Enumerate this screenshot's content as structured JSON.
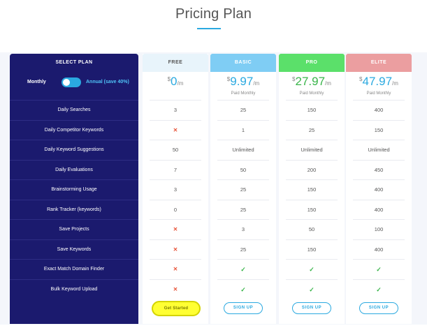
{
  "page": {
    "title": "Pricing Plan",
    "accent": "#2aa9e0"
  },
  "left": {
    "header": "SELECT PLAN",
    "toggle": {
      "monthly_label": "Monthly",
      "annual_label": "Annual (save 40%)",
      "on": true
    }
  },
  "features": [
    "Daily Searches",
    "Daily Competitor Keywords",
    "Daily Keyword Suggestions",
    "Daily Evaluations",
    "Brainstorming Usage",
    "Rank Tracker (keywords)",
    "Save Projects",
    "Save Keywords",
    "Exact Match Domain Finder",
    "Bulk Keyword Upload"
  ],
  "plans": [
    {
      "name": "FREE",
      "color": "#e8f4fb",
      "text_color": "#555555",
      "currency": "$",
      "amount": "0",
      "period": "/m",
      "price_color": "#2aa9e0",
      "billing_note": "",
      "values": [
        "3",
        "x",
        "50",
        "7",
        "3",
        "0",
        "x",
        "x",
        "x",
        "x"
      ],
      "cta": "Get Started"
    },
    {
      "name": "BASIC",
      "color": "#7fcdf4",
      "text_color": "#ffffff",
      "currency": "$",
      "amount": "9.97",
      "period": "/m",
      "price_color": "#2aa9e0",
      "billing_note": "Paid Monthly",
      "values": [
        "25",
        "1",
        "Unlimited",
        "50",
        "25",
        "25",
        "3",
        "25",
        "check",
        "check"
      ],
      "cta": "SIGN UP"
    },
    {
      "name": "PRO",
      "color": "#5be06a",
      "text_color": "#ffffff",
      "currency": "$",
      "amount": "27.97",
      "period": "/m",
      "price_color": "#39b54a",
      "billing_note": "Paid Monthly",
      "values": [
        "150",
        "25",
        "Unlimited",
        "200",
        "150",
        "150",
        "50",
        "150",
        "check",
        "check"
      ],
      "cta": "SIGN UP"
    },
    {
      "name": "ELITE",
      "color": "#eb9ea0",
      "text_color": "#ffffff",
      "currency": "$",
      "amount": "47.97",
      "period": "/m",
      "price_color": "#2aa9e0",
      "billing_note": "Paid Monthly",
      "values": [
        "400",
        "150",
        "Unlimited",
        "450",
        "400",
        "400",
        "100",
        "400",
        "check",
        "check"
      ],
      "cta": "SIGN UP"
    }
  ]
}
